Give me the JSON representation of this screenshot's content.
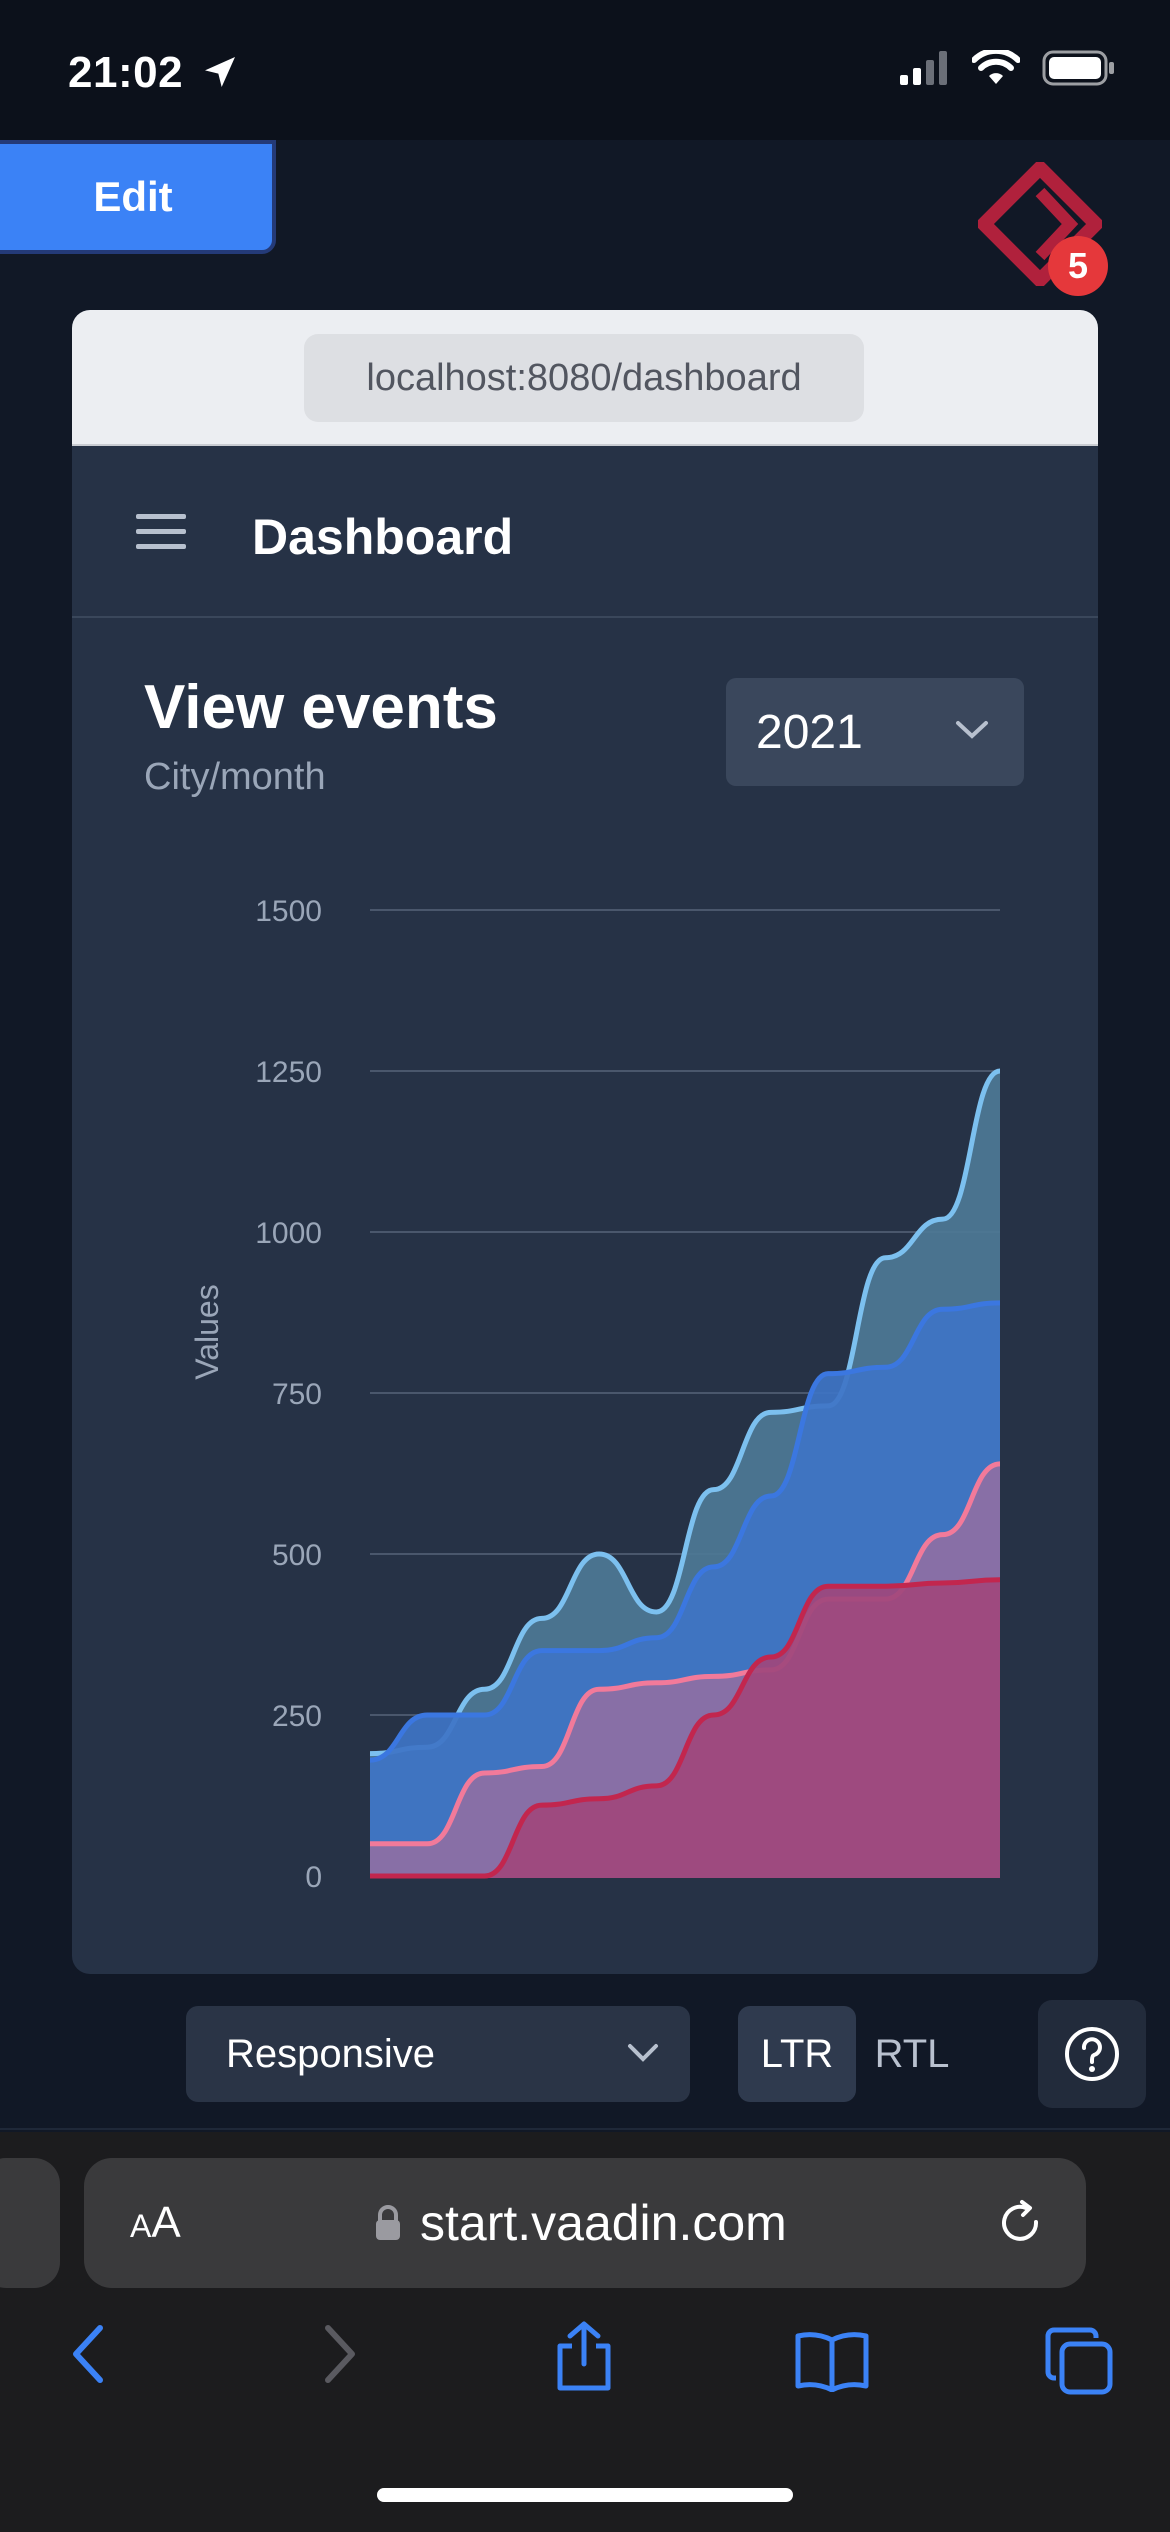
{
  "status_bar": {
    "time": "21:02"
  },
  "dev_toolbar": {
    "edit_label": "Edit",
    "badge_count": "5"
  },
  "preview": {
    "url": "localhost:8080/dashboard",
    "app_title": "Dashboard",
    "card": {
      "title": "View events",
      "subtitle": "City/month",
      "year_select": "2021"
    }
  },
  "chart_data": {
    "type": "area",
    "title": "View events",
    "subtitle": "City/month",
    "ylabel": "Values",
    "ylim": [
      0,
      1500
    ],
    "yticks": [
      "0",
      "250",
      "500",
      "750",
      "1000",
      "1250",
      "1500"
    ],
    "x": [
      0,
      1,
      2,
      3,
      4,
      5,
      6,
      7,
      8,
      9,
      10,
      11
    ],
    "series": [
      {
        "color": "#7cc0ef",
        "fill": "#4d7896",
        "values": [
          190,
          200,
          290,
          400,
          500,
          410,
          600,
          720,
          730,
          960,
          1020,
          1250
        ]
      },
      {
        "color": "#3b77e0",
        "fill": "#3e74c6",
        "values": [
          180,
          250,
          250,
          350,
          350,
          370,
          480,
          590,
          780,
          790,
          880,
          890
        ]
      },
      {
        "color": "#f27a9a",
        "fill": "#8e6fa4",
        "values": [
          50,
          50,
          160,
          170,
          290,
          300,
          310,
          320,
          430,
          430,
          530,
          640
        ]
      },
      {
        "color": "#c2264e",
        "fill": "#a0477c",
        "values": [
          0,
          0,
          0,
          110,
          120,
          140,
          250,
          340,
          450,
          450,
          455,
          460
        ]
      }
    ],
    "grid": true,
    "legend": "none"
  },
  "bottom_toolbar": {
    "mode_select": "Responsive",
    "ltr": "LTR",
    "rtl": "RTL"
  },
  "safari": {
    "aa_small": "A",
    "aa_large": "A",
    "host": "start.vaadin.com"
  }
}
